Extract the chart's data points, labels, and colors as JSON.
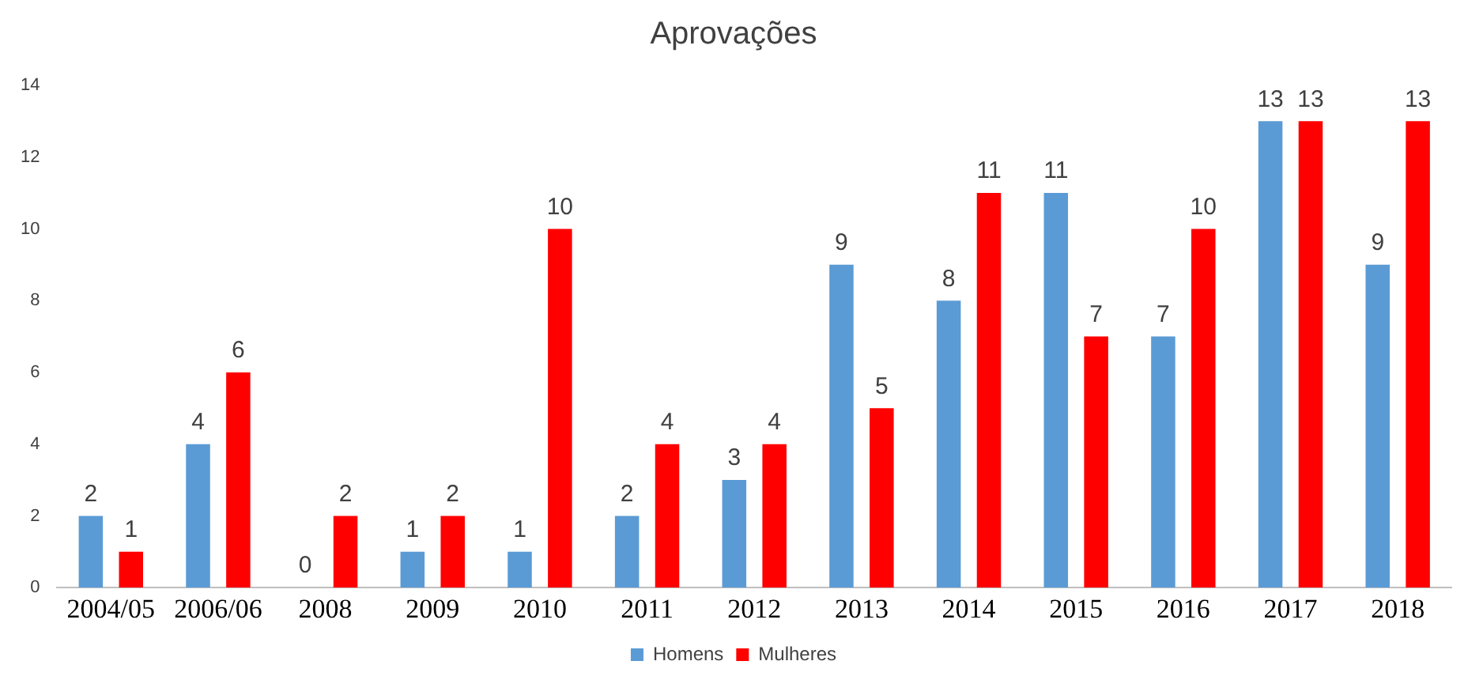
{
  "chart_data": {
    "type": "bar",
    "title": "Aprovações",
    "categories": [
      "2004/05",
      "2006/06",
      "2008",
      "2009",
      "2010",
      "2011",
      "2012",
      "2013",
      "2014",
      "2015",
      "2016",
      "2017",
      "2018"
    ],
    "series": [
      {
        "name": "Homens",
        "color": "#5b9bd5",
        "values": [
          2,
          4,
          0,
          1,
          1,
          2,
          3,
          9,
          8,
          11,
          7,
          13,
          9
        ]
      },
      {
        "name": "Mulheres",
        "color": "#ff0000",
        "values": [
          1,
          6,
          2,
          2,
          10,
          4,
          4,
          5,
          11,
          7,
          10,
          13,
          13
        ]
      }
    ],
    "ylim": [
      0,
      14
    ],
    "yticks": [
      0,
      2,
      4,
      6,
      8,
      10,
      12,
      14
    ],
    "grid": false,
    "legend": "bottom",
    "data_labels": true
  }
}
